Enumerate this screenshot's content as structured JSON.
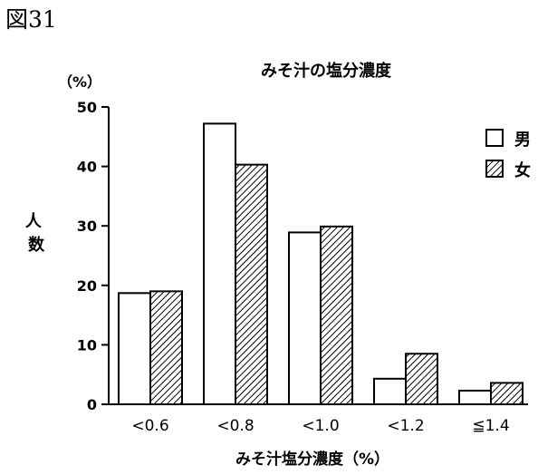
{
  "figure_label": "図31",
  "chart_data": {
    "type": "bar",
    "title": "みそ汁の塩分濃度",
    "y_unit": "（%）",
    "ylabel": "人数",
    "xlabel": "みそ汁塩分濃度（%）",
    "categories": [
      "<0.6",
      "<0.8",
      "<1.0",
      "<1.2",
      "≦1.4"
    ],
    "yticks": [
      0,
      10,
      20,
      30,
      40,
      50
    ],
    "ylim": [
      0,
      50
    ],
    "series": [
      {
        "name": "男",
        "values": [
          18.7,
          47.2,
          28.9,
          4.3,
          2.3
        ],
        "fill": "#ffffff"
      },
      {
        "name": "女",
        "values": [
          19.0,
          40.3,
          29.9,
          8.5,
          3.6
        ],
        "fill": "hatched"
      }
    ],
    "legend_position": "top-right",
    "grid": false
  }
}
